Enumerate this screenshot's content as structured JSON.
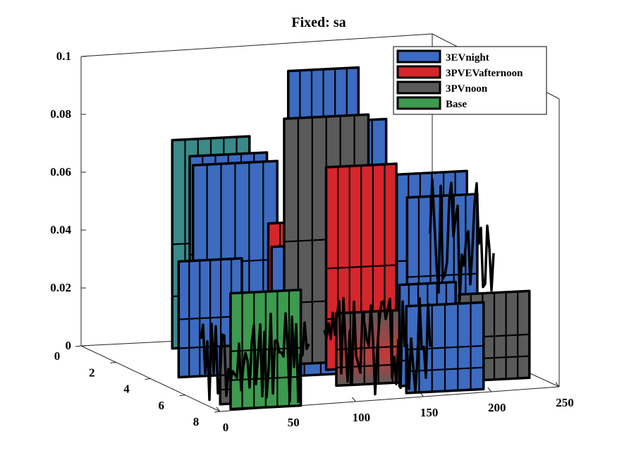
{
  "chart_data": {
    "type": "3d-waterfall",
    "title": "Fixed: sa",
    "x_ticks": [
      "0",
      "50",
      "100",
      "150",
      "200",
      "250"
    ],
    "y_ticks": [
      "0",
      "2",
      "4",
      "6",
      "8"
    ],
    "z_ticks": [
      "0",
      "0.02",
      "0.04",
      "0.06",
      "0.08",
      "0.1"
    ],
    "xlim": [
      0,
      250
    ],
    "ylim": [
      0,
      8
    ],
    "zlim": [
      0,
      0.1
    ],
    "legend_position": "top-right",
    "series": [
      {
        "name": "3EVnight",
        "color": "#3c6bc1",
        "x": [
          0,
          50,
          100,
          120,
          150,
          200
        ],
        "values": [
          0.04,
          0.06,
          0.055,
          0.045,
          0.09,
          0.045
        ]
      },
      {
        "name": "3PVEVafternoon",
        "color": "#d4262b",
        "x": [
          0,
          50,
          100,
          120,
          150,
          200
        ],
        "values": [
          0.03,
          0.05,
          0.045,
          0.075,
          0.06,
          0.035
        ]
      },
      {
        "name": "3PVnoon",
        "color": "#5a5a5a",
        "x": [
          0,
          50,
          100,
          120,
          150,
          200
        ],
        "values": [
          0.035,
          0.055,
          0.085,
          0.04,
          0.05,
          0.03
        ]
      },
      {
        "name": "Base",
        "color": "#3d9a4f",
        "x": [
          0,
          50,
          100,
          120,
          150,
          200
        ],
        "values": [
          0.035,
          0.05,
          0.04,
          0.03,
          0.045,
          0.025
        ]
      }
    ]
  }
}
